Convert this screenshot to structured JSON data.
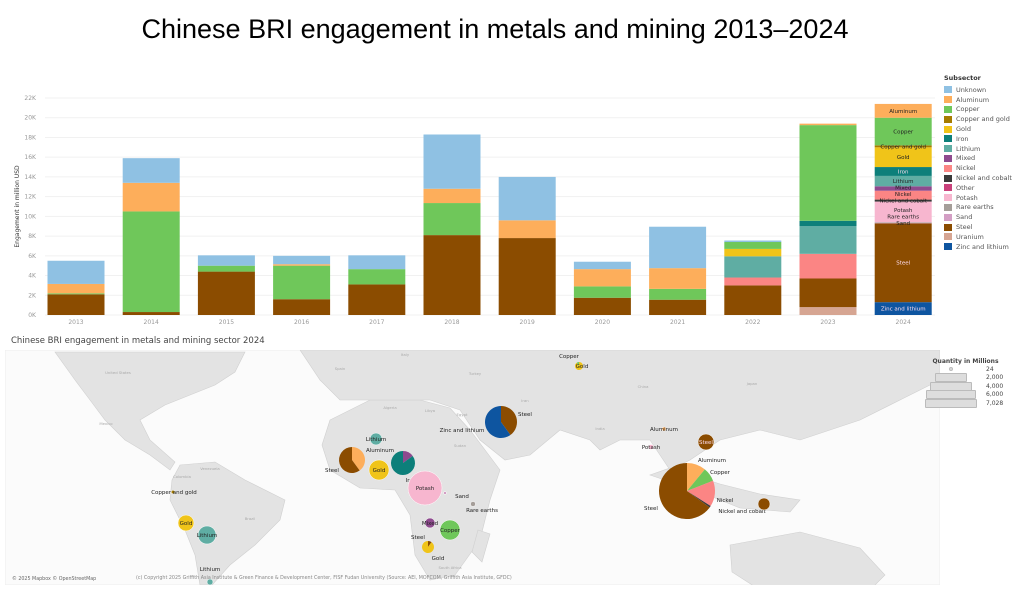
{
  "title": "Chinese BRI engagement in metals and mining 2013–2024",
  "chart_data": {
    "type": "bar",
    "stacked": true,
    "ylabel": "Engagement in million USD",
    "xlabel": "",
    "ylim": [
      0,
      22000
    ],
    "yticks": [
      "0K",
      "2K",
      "4K",
      "6K",
      "8K",
      "10K",
      "12K",
      "14K",
      "16K",
      "18K",
      "20K",
      "22K"
    ],
    "grid": true,
    "legend_title": "Subsector",
    "legend_position": "right",
    "categories": [
      "2013",
      "2014",
      "2015",
      "2016",
      "2017",
      "2018",
      "2019",
      "2020",
      "2021",
      "2022",
      "2023",
      "2024"
    ],
    "series": [
      {
        "name": "Zinc and lithium",
        "color": "#0e55a0",
        "values": [
          0,
          0,
          0,
          0,
          0,
          0,
          0,
          0,
          0,
          0,
          0,
          1300
        ]
      },
      {
        "name": "Uranium",
        "color": "#d6a592",
        "values": [
          0,
          0,
          0,
          0,
          0,
          0,
          0,
          0,
          0,
          0,
          800,
          0
        ]
      },
      {
        "name": "Steel",
        "color": "#8b4c00",
        "values": [
          2100,
          300,
          4400,
          1600,
          3100,
          8100,
          7800,
          1750,
          1550,
          3000,
          2900,
          8000
        ]
      },
      {
        "name": "Sand",
        "color": "#d39ec4",
        "values": [
          0,
          0,
          0,
          0,
          0,
          0,
          0,
          0,
          0,
          0,
          0,
          50
        ]
      },
      {
        "name": "Rare earths",
        "color": "#a59e99",
        "values": [
          0,
          0,
          0,
          0,
          0,
          0,
          0,
          0,
          0,
          0,
          0,
          50
        ]
      },
      {
        "name": "Potash",
        "color": "#f7b6cf",
        "values": [
          0,
          0,
          0,
          0,
          0,
          0,
          0,
          0,
          0,
          0,
          0,
          2100
        ]
      },
      {
        "name": "Other",
        "color": "#c9417b",
        "values": [
          0,
          0,
          0,
          0,
          0,
          0,
          0,
          0,
          0,
          0,
          0,
          0
        ]
      },
      {
        "name": "Nickel and cobalt",
        "color": "#3a3a3a",
        "values": [
          0,
          0,
          0,
          0,
          0,
          0,
          0,
          0,
          0,
          0,
          0,
          200
        ]
      },
      {
        "name": "Nickel",
        "color": "#fb8584",
        "values": [
          0,
          0,
          0,
          0,
          0,
          0,
          0,
          0,
          0,
          800,
          2500,
          900
        ]
      },
      {
        "name": "Mixed",
        "color": "#8e4a8e",
        "values": [
          0,
          0,
          0,
          0,
          0,
          0,
          0,
          0,
          0,
          0,
          0,
          450
        ]
      },
      {
        "name": "Lithium",
        "color": "#5fada3",
        "values": [
          0,
          0,
          0,
          0,
          0,
          0,
          0,
          0,
          0,
          2150,
          2800,
          1050
        ]
      },
      {
        "name": "Iron",
        "color": "#0d7f7a",
        "values": [
          0,
          0,
          0,
          0,
          0,
          0,
          0,
          0,
          0,
          0,
          550,
          900
        ]
      },
      {
        "name": "Gold",
        "color": "#f0c419",
        "values": [
          0,
          0,
          0,
          0,
          0,
          0,
          0,
          0,
          0,
          750,
          0,
          2000
        ]
      },
      {
        "name": "Copper and gold",
        "color": "#a67c00",
        "values": [
          0,
          0,
          0,
          0,
          0,
          0,
          0,
          0,
          0,
          0,
          0,
          200
        ]
      },
      {
        "name": "Copper",
        "color": "#6fc75a",
        "values": [
          100,
          10200,
          600,
          3400,
          1550,
          3250,
          0,
          1150,
          1100,
          700,
          9700,
          2800
        ]
      },
      {
        "name": "Aluminum",
        "color": "#fdae5b",
        "values": [
          950,
          2900,
          0,
          150,
          0,
          1450,
          1800,
          1750,
          2100,
          0,
          150,
          1400
        ]
      },
      {
        "name": "Unknown",
        "color": "#8fc1e3",
        "values": [
          2350,
          2500,
          1050,
          850,
          1400,
          5500,
          4400,
          750,
          4200,
          150,
          0,
          0
        ]
      }
    ],
    "legend_order": [
      "Unknown",
      "Aluminum",
      "Copper",
      "Copper and gold",
      "Gold",
      "Iron",
      "Lithium",
      "Mixed",
      "Nickel",
      "Nickel and cobalt",
      "Other",
      "Potash",
      "Rare earths",
      "Sand",
      "Steel",
      "Uranium",
      "Zinc and lithium"
    ],
    "labeled_category": "2024"
  },
  "map": {
    "title": "Chinese BRI engagement in metals and mining sector 2024",
    "attribution": "© 2025 Mapbox © OpenStreetMap",
    "copyright": "(c) Copyright 2025 Griffith Asia Institute & Green Finance & Development Center, FISF Fudan University (Source: AEI, MOFCOM, Griffith Asia Institute, GFDC)",
    "country_labels": [
      "United States",
      "Mexico",
      "Venezuela",
      "Colombia",
      "Brazil",
      "Spain",
      "Italy",
      "Algeria",
      "Libya",
      "Egypt",
      "Sudan",
      "Turkey",
      "Iran",
      "China",
      "India",
      "Japan",
      "South Africa"
    ],
    "size_legend": {
      "title": "Quantity in Millions",
      "values": [
        "24",
        "2,000",
        "4,000",
        "6,000",
        "7,028"
      ]
    },
    "markers": [
      {
        "slices": [
          [
            "Gold",
            0.9
          ],
          [
            "Copper",
            0.1
          ]
        ],
        "labels": [
          "Copper",
          "Gold"
        ]
      },
      {
        "slices": [
          [
            "Lithium",
            1
          ]
        ],
        "labels": [
          "Lithium"
        ]
      },
      {
        "slices": [
          [
            "Aluminum",
            0.4
          ],
          [
            "Steel",
            0.6
          ]
        ],
        "labels": [
          "Aluminum",
          "Steel"
        ]
      },
      {
        "slices": [
          [
            "Gold",
            1
          ]
        ],
        "labels": [
          "Gold"
        ]
      },
      {
        "slices": [
          [
            "Mixed",
            0.15
          ],
          [
            "Iron",
            0.85
          ]
        ],
        "labels": [
          "Iron"
        ]
      },
      {
        "slices": [
          [
            "Potash",
            1
          ]
        ],
        "labels": [
          "Potash"
        ]
      },
      {
        "slices": [
          [
            "Sand",
            1
          ]
        ],
        "labels": [
          "Sand"
        ]
      },
      {
        "slices": [
          [
            "Rare earths",
            1
          ]
        ],
        "labels": [
          "Rare earths"
        ]
      },
      {
        "slices": [
          [
            "Mixed",
            1
          ]
        ],
        "labels": [
          "Mixed"
        ]
      },
      {
        "slices": [
          [
            "Copper",
            1
          ]
        ],
        "labels": [
          "Copper"
        ]
      },
      {
        "slices": [
          [
            "Steel",
            0.1
          ],
          [
            "Gold",
            0.9
          ]
        ],
        "labels": [
          "Steel",
          "Gold"
        ]
      },
      {
        "slices": [
          [
            "Steel",
            0.4
          ],
          [
            "Zinc and lithium",
            0.6
          ]
        ],
        "labels": [
          "Steel",
          "Zinc and lithium"
        ]
      },
      {
        "slices": [
          [
            "Aluminum",
            1
          ]
        ],
        "labels": [
          "Aluminum"
        ]
      },
      {
        "slices": [
          [
            "Potash",
            1
          ]
        ],
        "labels": [
          "Potash"
        ]
      },
      {
        "slices": [
          [
            "Steel",
            1
          ]
        ],
        "labels": [
          "Steel"
        ]
      },
      {
        "slices": [
          [
            "Aluminum",
            0.11
          ],
          [
            "Copper",
            0.08
          ],
          [
            "Nickel",
            0.15
          ],
          [
            "Nickel and cobalt",
            0.01
          ],
          [
            "Steel",
            0.65
          ]
        ],
        "labels": [
          "Aluminum",
          "Copper",
          "Nickel",
          "Nickel and cobalt",
          "Steel"
        ]
      },
      {
        "slices": [
          [
            "Steel",
            1
          ]
        ],
        "labels": []
      },
      {
        "slices": [
          [
            "Copper and gold",
            1
          ]
        ],
        "labels": [
          "Copper and gold"
        ]
      },
      {
        "slices": [
          [
            "Gold",
            1
          ]
        ],
        "labels": [
          "Gold"
        ]
      },
      {
        "slices": [
          [
            "Lithium",
            1
          ]
        ],
        "labels": [
          "Lithium"
        ]
      },
      {
        "slices": [
          [
            "Lithium",
            1
          ]
        ],
        "labels": [
          "Lithium"
        ]
      }
    ]
  }
}
